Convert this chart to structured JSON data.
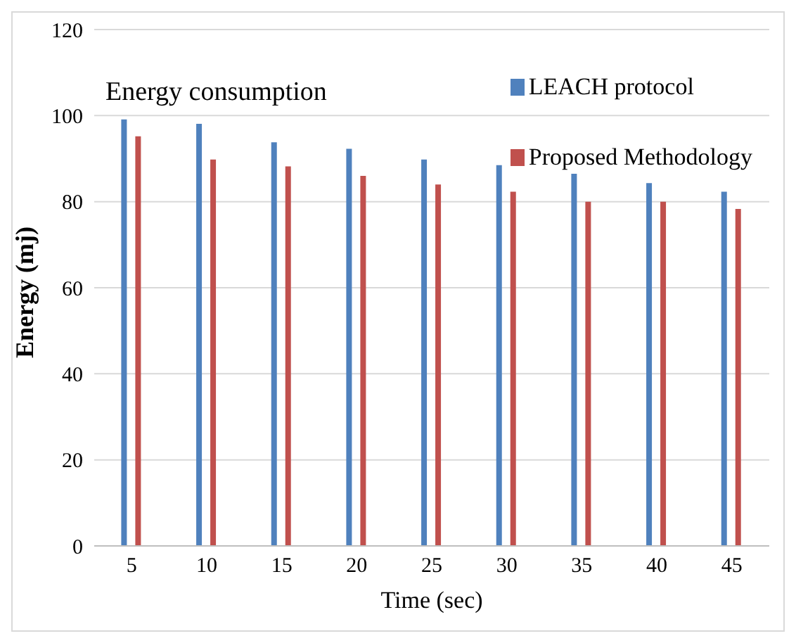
{
  "chart_data": {
    "type": "bar",
    "title": "Energy consumption",
    "xlabel": "Time (sec)",
    "ylabel": "Energy (mj)",
    "categories": [
      "5",
      "10",
      "15",
      "20",
      "25",
      "30",
      "35",
      "40",
      "45"
    ],
    "series": [
      {
        "name": "LEACH protocol",
        "color": "#4f81bd",
        "values": [
          99.1,
          98.1,
          93.8,
          92.3,
          89.8,
          88.5,
          86.5,
          84.3,
          82.3
        ]
      },
      {
        "name": "Proposed Methodology",
        "color": "#c0504d",
        "values": [
          95.2,
          89.8,
          88.2,
          86,
          84,
          82.3,
          80,
          80,
          78.3
        ]
      }
    ],
    "ylim": [
      0,
      120
    ],
    "yticks": [
      0,
      20,
      40,
      60,
      80,
      100,
      120
    ],
    "grid": "y",
    "legend": "top right"
  }
}
